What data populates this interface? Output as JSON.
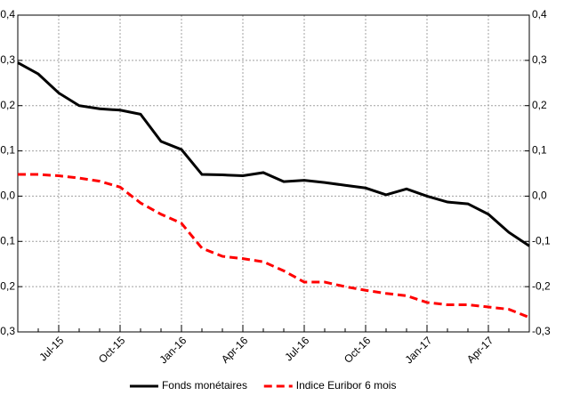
{
  "chart_data": {
    "type": "line",
    "categories": [
      null,
      null,
      "Jul-15",
      null,
      null,
      "Oct-15",
      null,
      null,
      "Jan-16",
      null,
      null,
      "Apr-16",
      null,
      null,
      "Jul-16",
      null,
      null,
      "Oct-16",
      null,
      null,
      "Jan-17",
      null,
      null,
      "Apr-17",
      null,
      null
    ],
    "series": [
      {
        "name": "Fonds monétaires",
        "color": "#000000",
        "style": "solid",
        "values": [
          0.295,
          0.27,
          0.228,
          0.2,
          0.193,
          0.19,
          0.181,
          0.121,
          0.103,
          0.048,
          0.047,
          0.045,
          0.052,
          0.032,
          0.035,
          0.03,
          0.024,
          0.018,
          0.003,
          0.016,
          0.0,
          -0.013,
          -0.017,
          -0.04,
          -0.08,
          -0.11
        ]
      },
      {
        "name": "Indice Euribor 6 mois",
        "color": "#ff0000",
        "style": "dashed",
        "values": [
          0.048,
          0.048,
          0.045,
          0.04,
          0.033,
          0.02,
          -0.015,
          -0.04,
          -0.06,
          -0.115,
          -0.133,
          -0.138,
          -0.145,
          -0.165,
          -0.19,
          -0.19,
          -0.2,
          -0.208,
          -0.215,
          -0.22,
          -0.235,
          -0.24,
          -0.24,
          -0.245,
          -0.25,
          -0.268
        ]
      }
    ],
    "ylim": [
      -0.3,
      0.4
    ],
    "yticks": [
      {
        "value": -0.3,
        "label": "-0,3"
      },
      {
        "value": -0.2,
        "label": "-0,2"
      },
      {
        "value": -0.1,
        "label": "-0,1"
      },
      {
        "value": 0,
        "label": "0,0"
      },
      {
        "value": 0.1,
        "label": "0,1"
      },
      {
        "value": 0.2,
        "label": "0,2"
      },
      {
        "value": 0.3,
        "label": "0,3"
      },
      {
        "value": 0.4,
        "label": "0,4"
      }
    ],
    "y2lim": [
      -0.3,
      0.4
    ],
    "y2ticks": [
      {
        "value": -0.3,
        "label": "-0,3"
      },
      {
        "value": -0.2,
        "label": "-0,2"
      },
      {
        "value": -0.1,
        "label": "-0,1"
      },
      {
        "value": 0,
        "label": "0,0"
      },
      {
        "value": 0.1,
        "label": "0,1"
      },
      {
        "value": 0.2,
        "label": "0,2"
      },
      {
        "value": 0.3,
        "label": "0,3"
      },
      {
        "value": 0.4,
        "label": "0,4"
      }
    ],
    "grid": true,
    "legend": "bottom"
  }
}
